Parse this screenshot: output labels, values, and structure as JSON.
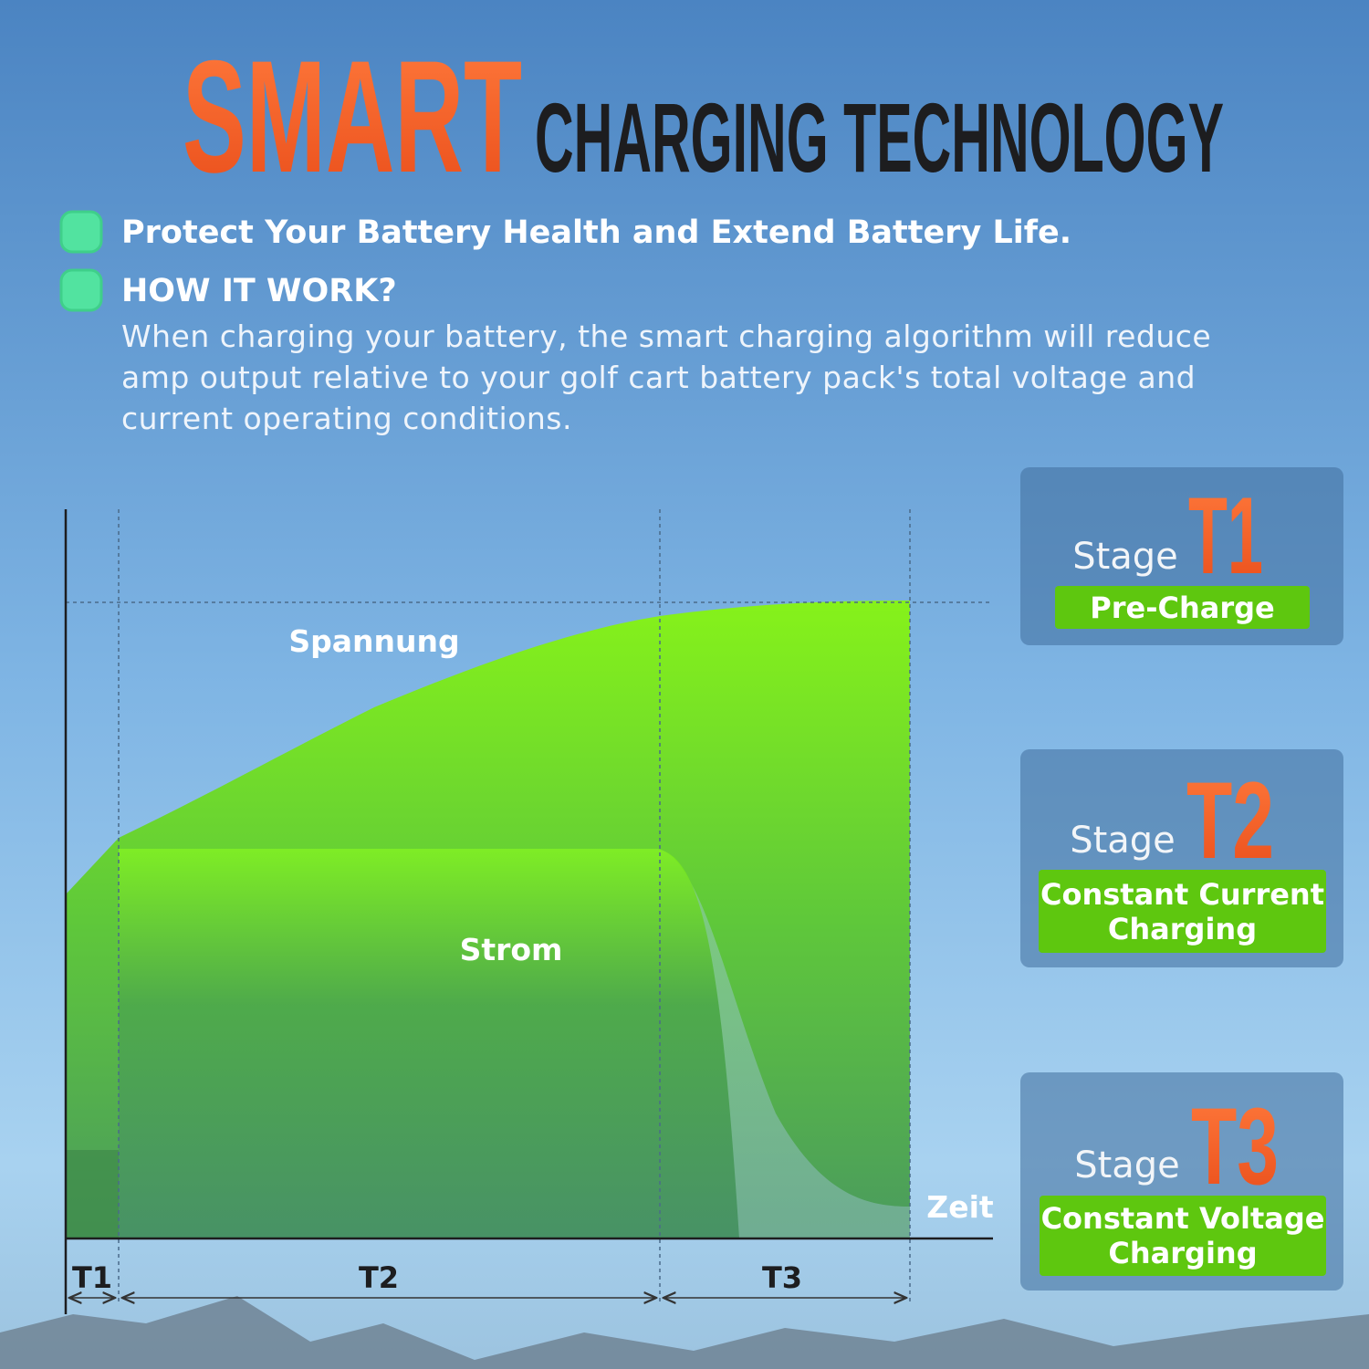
{
  "header": {
    "title_accent": "SMART",
    "title_rest": "CHARGING TECHNOLOGY"
  },
  "bullets": [
    {
      "text": "Protect Your Battery Health and Extend Battery Life."
    },
    {
      "text": "HOW IT WORK?",
      "body": "When charging your battery, the smart charging algorithm will reduce amp output relative to your golf cart battery pack's total voltage and current operating conditions."
    }
  ],
  "diagram": {
    "voltage_label": "Spannung",
    "current_label": "Strom",
    "axis_label": "Zeit",
    "phases": [
      "T1",
      "T2",
      "T3"
    ]
  },
  "stages": [
    {
      "prefix": "Stage",
      "code": "T1",
      "name": "Pre-Charge"
    },
    {
      "prefix": "Stage",
      "code": "T2",
      "name": "Constant Current Charging"
    },
    {
      "prefix": "Stage",
      "code": "T3",
      "name": "Constant Voltage Charging"
    }
  ]
}
